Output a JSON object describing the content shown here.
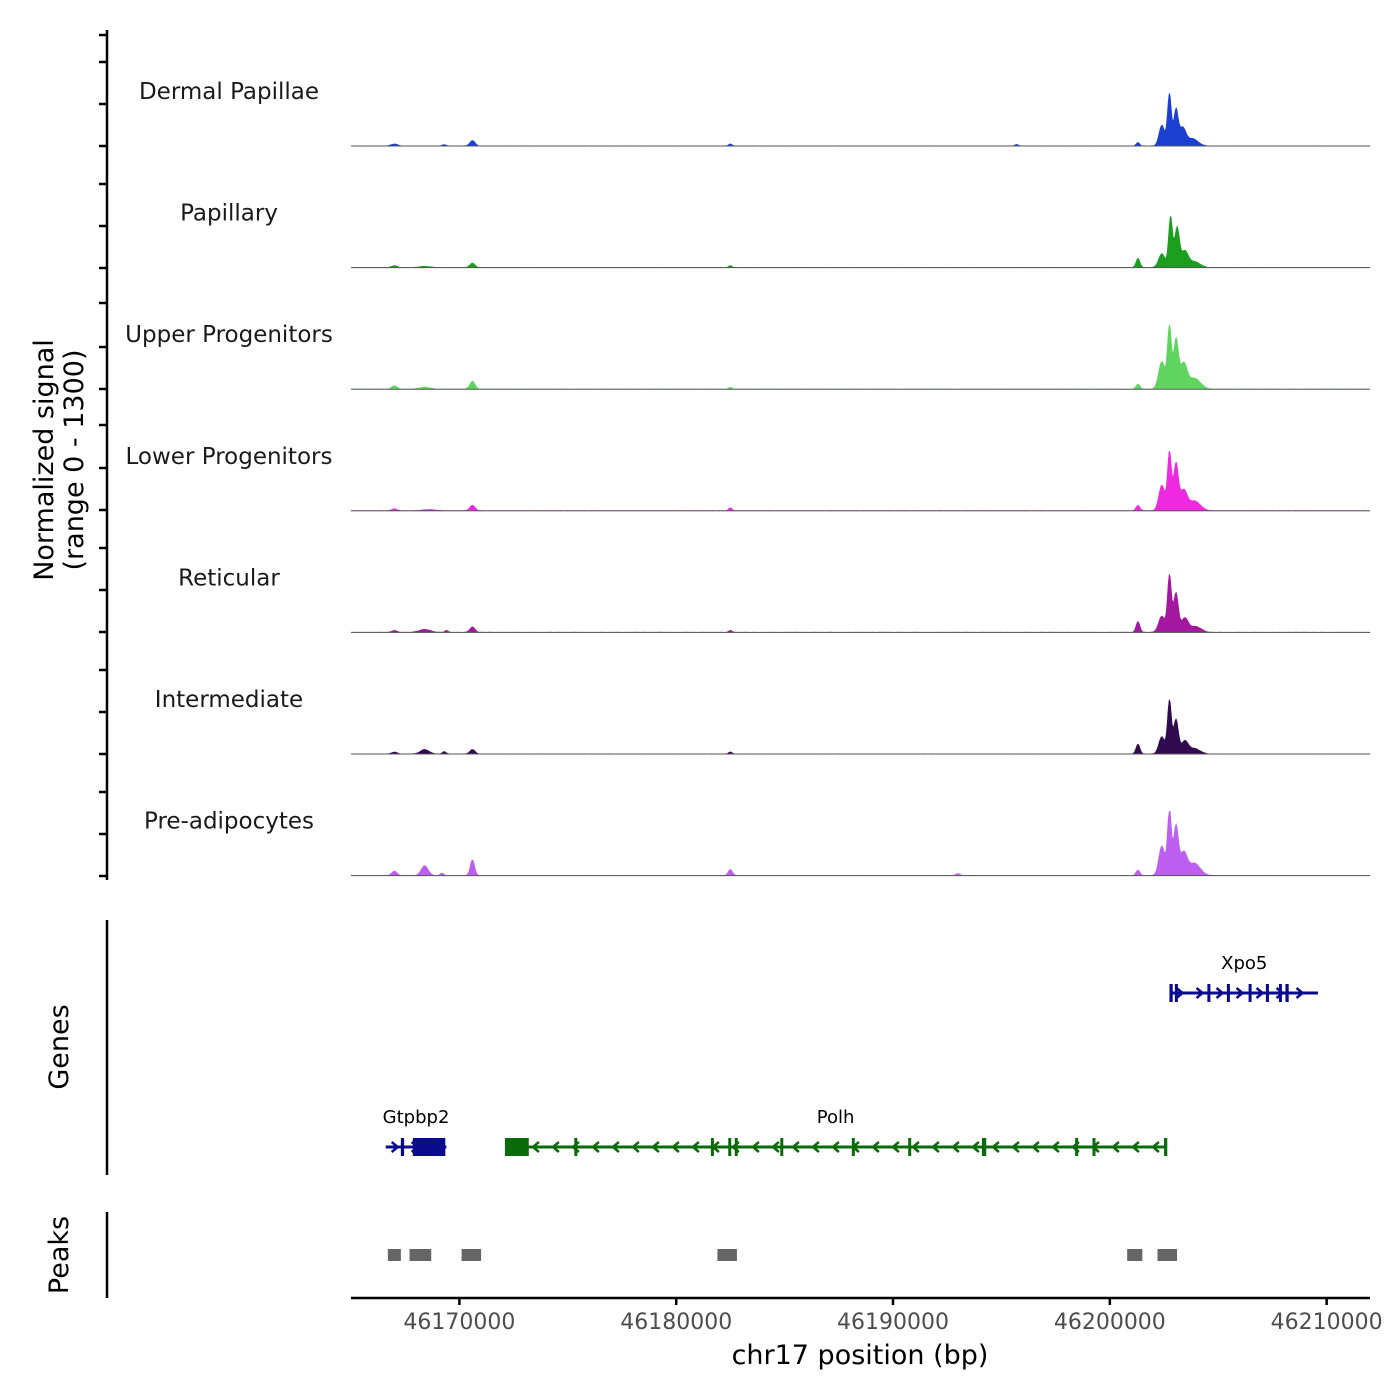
{
  "chart_data": {
    "type": "area",
    "title": "",
    "ylabel_line1": "Normalized signal",
    "ylabel_line2": "(range 0 - 1300)",
    "xlabel": "chr17 position (bp)",
    "x_range": [
      46165000,
      46212000
    ],
    "y_range": [
      0,
      1300
    ],
    "x_ticks": [
      46170000,
      46180000,
      46190000,
      46200000,
      46210000
    ],
    "x_tick_labels": [
      "46170000",
      "46180000",
      "46190000",
      "46200000",
      "46210000"
    ],
    "tracks": [
      {
        "name": "Dermal Papillae",
        "color": "#1a3fd1",
        "peaks": [
          {
            "pos": 46167000,
            "height": 40,
            "width": 150
          },
          {
            "pos": 46169300,
            "height": 30,
            "width": 80
          },
          {
            "pos": 46170600,
            "height": 110,
            "width": 120
          },
          {
            "pos": 46182500,
            "height": 40,
            "width": 80
          },
          {
            "pos": 46195700,
            "height": 30,
            "width": 80
          },
          {
            "pos": 46201300,
            "height": 70,
            "width": 80
          },
          {
            "pos": 46202400,
            "height": 420,
            "width": 130
          },
          {
            "pos": 46202750,
            "height": 1060,
            "width": 90
          },
          {
            "pos": 46203050,
            "height": 720,
            "width": 100
          },
          {
            "pos": 46203350,
            "height": 350,
            "width": 150
          },
          {
            "pos": 46203800,
            "height": 150,
            "width": 260
          }
        ]
      },
      {
        "name": "Papillary",
        "color": "#1e9e1e",
        "peaks": [
          {
            "pos": 46167000,
            "height": 40,
            "width": 120
          },
          {
            "pos": 46168400,
            "height": 25,
            "width": 250
          },
          {
            "pos": 46170600,
            "height": 90,
            "width": 120
          },
          {
            "pos": 46182500,
            "height": 40,
            "width": 80
          },
          {
            "pos": 46201300,
            "height": 190,
            "width": 90
          },
          {
            "pos": 46202400,
            "height": 280,
            "width": 150
          },
          {
            "pos": 46202800,
            "height": 1030,
            "width": 90
          },
          {
            "pos": 46203100,
            "height": 800,
            "width": 110
          },
          {
            "pos": 46203450,
            "height": 320,
            "width": 160
          },
          {
            "pos": 46203900,
            "height": 120,
            "width": 260
          }
        ]
      },
      {
        "name": "Upper Progenitors",
        "color": "#5fd45f",
        "peaks": [
          {
            "pos": 46167000,
            "height": 70,
            "width": 120
          },
          {
            "pos": 46168400,
            "height": 40,
            "width": 250
          },
          {
            "pos": 46170600,
            "height": 160,
            "width": 120
          },
          {
            "pos": 46182500,
            "height": 40,
            "width": 80
          },
          {
            "pos": 46201300,
            "height": 100,
            "width": 90
          },
          {
            "pos": 46202400,
            "height": 560,
            "width": 150
          },
          {
            "pos": 46202750,
            "height": 1280,
            "width": 90
          },
          {
            "pos": 46203050,
            "height": 1000,
            "width": 110
          },
          {
            "pos": 46203400,
            "height": 500,
            "width": 160
          },
          {
            "pos": 46203900,
            "height": 220,
            "width": 280
          }
        ]
      },
      {
        "name": "Lower Progenitors",
        "color": "#ee2ae0",
        "peaks": [
          {
            "pos": 46167000,
            "height": 40,
            "width": 120
          },
          {
            "pos": 46168600,
            "height": 25,
            "width": 300
          },
          {
            "pos": 46170600,
            "height": 110,
            "width": 120
          },
          {
            "pos": 46182500,
            "height": 60,
            "width": 80
          },
          {
            "pos": 46201300,
            "height": 110,
            "width": 90
          },
          {
            "pos": 46202400,
            "height": 520,
            "width": 140
          },
          {
            "pos": 46202750,
            "height": 1180,
            "width": 90
          },
          {
            "pos": 46203050,
            "height": 950,
            "width": 110
          },
          {
            "pos": 46203400,
            "height": 400,
            "width": 160
          },
          {
            "pos": 46203900,
            "height": 200,
            "width": 270
          }
        ]
      },
      {
        "name": "Reticular",
        "color": "#a3189e",
        "peaks": [
          {
            "pos": 46167000,
            "height": 40,
            "width": 120
          },
          {
            "pos": 46168400,
            "height": 60,
            "width": 260
          },
          {
            "pos": 46169400,
            "height": 40,
            "width": 80
          },
          {
            "pos": 46170600,
            "height": 110,
            "width": 120
          },
          {
            "pos": 46182500,
            "height": 40,
            "width": 80
          },
          {
            "pos": 46201300,
            "height": 220,
            "width": 90
          },
          {
            "pos": 46202400,
            "height": 330,
            "width": 150
          },
          {
            "pos": 46202750,
            "height": 1150,
            "width": 90
          },
          {
            "pos": 46203050,
            "height": 800,
            "width": 110
          },
          {
            "pos": 46203450,
            "height": 280,
            "width": 160
          },
          {
            "pos": 46203950,
            "height": 120,
            "width": 260
          }
        ]
      },
      {
        "name": "Intermediate",
        "color": "#300a4f",
        "peaks": [
          {
            "pos": 46167000,
            "height": 40,
            "width": 120
          },
          {
            "pos": 46168400,
            "height": 90,
            "width": 200
          },
          {
            "pos": 46169300,
            "height": 50,
            "width": 80
          },
          {
            "pos": 46170600,
            "height": 90,
            "width": 120
          },
          {
            "pos": 46182500,
            "height": 40,
            "width": 80
          },
          {
            "pos": 46201300,
            "height": 200,
            "width": 90
          },
          {
            "pos": 46202400,
            "height": 350,
            "width": 140
          },
          {
            "pos": 46202750,
            "height": 1080,
            "width": 90
          },
          {
            "pos": 46203050,
            "height": 700,
            "width": 110
          },
          {
            "pos": 46203450,
            "height": 250,
            "width": 160
          },
          {
            "pos": 46203900,
            "height": 110,
            "width": 260
          }
        ]
      },
      {
        "name": "Pre-adipocytes",
        "color": "#bd5ff0",
        "peaks": [
          {
            "pos": 46167000,
            "height": 90,
            "width": 120
          },
          {
            "pos": 46168400,
            "height": 200,
            "width": 160
          },
          {
            "pos": 46169200,
            "height": 50,
            "width": 80
          },
          {
            "pos": 46170600,
            "height": 320,
            "width": 100
          },
          {
            "pos": 46182500,
            "height": 120,
            "width": 100
          },
          {
            "pos": 46193000,
            "height": 40,
            "width": 100
          },
          {
            "pos": 46201300,
            "height": 110,
            "width": 90
          },
          {
            "pos": 46202400,
            "height": 600,
            "width": 140
          },
          {
            "pos": 46202750,
            "height": 1320,
            "width": 90
          },
          {
            "pos": 46203050,
            "height": 1000,
            "width": 110
          },
          {
            "pos": 46203400,
            "height": 450,
            "width": 160
          },
          {
            "pos": 46203900,
            "height": 250,
            "width": 270
          }
        ]
      }
    ],
    "genes": {
      "label": "Genes",
      "items": [
        {
          "name": "Xpo5",
          "strand": "+",
          "row": 0,
          "color": "#0a0a8c",
          "start": 46202800,
          "end": 46209600,
          "exons": [
            [
              46202750,
              46202900
            ],
            [
              46203000,
              46203120
            ],
            [
              46204500,
              46204600
            ],
            [
              46205400,
              46205500
            ],
            [
              46206400,
              46206480
            ],
            [
              46207200,
              46207280
            ],
            [
              46207800,
              46207900
            ],
            [
              46208100,
              46208250
            ]
          ]
        },
        {
          "name": "Gtpbp2",
          "strand": "+",
          "row": 1,
          "color": "#0a0a8c",
          "start": 46166600,
          "end": 46169400,
          "exons": [
            [
              46167300,
              46167450
            ],
            [
              46167850,
              46169350
            ]
          ]
        },
        {
          "name": "Polh",
          "strand": "-",
          "row": 1,
          "color": "#0a6b0a",
          "start": 46172100,
          "end": 46202600,
          "exons": [
            [
              46172100,
              46173200
            ],
            [
              46175300,
              46175400
            ],
            [
              46181600,
              46181700
            ],
            [
              46182400,
              46182500
            ],
            [
              46182700,
              46182800
            ],
            [
              46184800,
              46184900
            ],
            [
              46188100,
              46188200
            ],
            [
              46190700,
              46190800
            ],
            [
              46194100,
              46194300
            ],
            [
              46198400,
              46198500
            ],
            [
              46199200,
              46199300
            ],
            [
              46202500,
              46202650
            ]
          ]
        }
      ]
    },
    "peaks_track": {
      "label": "Peaks",
      "color": "#666666",
      "regions": [
        [
          46166700,
          46167300
        ],
        [
          46167700,
          46168700
        ],
        [
          46170100,
          46171000
        ],
        [
          46181900,
          46182800
        ],
        [
          46200800,
          46201500
        ],
        [
          46202200,
          46203100
        ]
      ]
    }
  }
}
